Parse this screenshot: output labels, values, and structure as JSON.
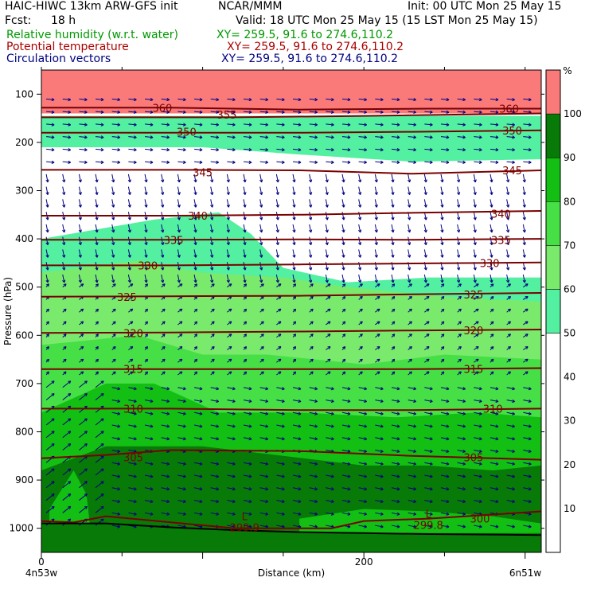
{
  "header": {
    "model": "HAIC-HIWC 13km ARW-GFS init",
    "org": "NCAR/MMM",
    "init": "Init: 00 UTC Mon 25 May 15",
    "fcst_label": "Fcst:",
    "fcst_value": "18 h",
    "valid": "Valid: 18 UTC Mon 25 May 15 (15 LST Mon 25 May 15)",
    "fields": [
      {
        "label": "Relative humidity (w.r.t. water)",
        "xy": "XY= 259.5, 91.6 to 274.6,110.2",
        "color": "#009900"
      },
      {
        "label": "Potential temperature",
        "xy": "XY= 259.5, 91.6 to 274.6,110.2",
        "color": "#aa0000"
      },
      {
        "label": "Circulation vectors",
        "xy": "XY= 259.5, 91.6 to 274.6,110.2",
        "color": "#000080"
      }
    ]
  },
  "chart_data": {
    "type": "cross-section",
    "ylabel": "Pressure (hPa)",
    "xlabel": "Distance (km)",
    "x_ticks": [
      0,
      200
    ],
    "xlim": [
      0,
      310
    ],
    "y_ticks": [
      100,
      200,
      300,
      400,
      500,
      600,
      700,
      800,
      900,
      1000
    ],
    "ylim": [
      1050,
      50
    ],
    "endpoint_left": "4n53w",
    "endpoint_right": "6n51w",
    "colorbar": {
      "unit": "%",
      "levels": [
        10,
        20,
        30,
        40,
        50,
        60,
        70,
        80,
        90,
        100
      ],
      "bins": [
        {
          "from": 0,
          "to": 50,
          "color": "#ffffff"
        },
        {
          "from": 50,
          "to": 60,
          "color": "#52f0a0"
        },
        {
          "from": 60,
          "to": 70,
          "color": "#7aea6c"
        },
        {
          "from": 70,
          "to": 80,
          "color": "#46e046"
        },
        {
          "from": 80,
          "to": 90,
          "color": "#13bf13"
        },
        {
          "from": 90,
          "to": 100,
          "color": "#087a08"
        },
        {
          "from": 100,
          "to": 110,
          "color": "#fa7a7a"
        }
      ]
    },
    "theta_labels": [
      {
        "text": "360",
        "x": 75,
        "p": 128
      },
      {
        "text": "360",
        "x": 290,
        "p": 130
      },
      {
        "text": "355",
        "x": 115,
        "p": 142
      },
      {
        "text": "350",
        "x": 90,
        "p": 178
      },
      {
        "text": "350",
        "x": 292,
        "p": 175
      },
      {
        "text": "345",
        "x": 100,
        "p": 262
      },
      {
        "text": "345",
        "x": 292,
        "p": 258
      },
      {
        "text": "340",
        "x": 97,
        "p": 352
      },
      {
        "text": "340",
        "x": 285,
        "p": 348
      },
      {
        "text": "335",
        "x": 82,
        "p": 402
      },
      {
        "text": "335",
        "x": 285,
        "p": 402
      },
      {
        "text": "330",
        "x": 66,
        "p": 455
      },
      {
        "text": "330",
        "x": 278,
        "p": 450
      },
      {
        "text": "325",
        "x": 53,
        "p": 520
      },
      {
        "text": "325",
        "x": 268,
        "p": 515
      },
      {
        "text": "320",
        "x": 57,
        "p": 595
      },
      {
        "text": "320",
        "x": 268,
        "p": 590
      },
      {
        "text": "315",
        "x": 57,
        "p": 670
      },
      {
        "text": "315",
        "x": 268,
        "p": 670
      },
      {
        "text": "310",
        "x": 57,
        "p": 752
      },
      {
        "text": "310",
        "x": 280,
        "p": 752
      },
      {
        "text": "305",
        "x": 57,
        "p": 853
      },
      {
        "text": "305",
        "x": 268,
        "p": 853
      },
      {
        "text": "300",
        "x": 272,
        "p": 980
      }
    ],
    "lows": [
      {
        "letter": "L",
        "value": "299.9",
        "x": 126,
        "p": 990
      },
      {
        "letter": "L",
        "value": "299.8",
        "x": 240,
        "p": 985
      }
    ],
    "theta_lines": [
      [
        [
          0,
          128
        ],
        [
          80,
          128
        ],
        [
          160,
          132
        ],
        [
          240,
          130
        ],
        [
          310,
          130
        ]
      ],
      [
        [
          0,
          148
        ],
        [
          60,
          148
        ],
        [
          120,
          148
        ],
        [
          200,
          145
        ],
        [
          310,
          140
        ]
      ],
      [
        [
          0,
          180
        ],
        [
          80,
          180
        ],
        [
          160,
          180
        ],
        [
          230,
          178
        ],
        [
          310,
          175
        ]
      ],
      [
        [
          0,
          257
        ],
        [
          80,
          257
        ],
        [
          160,
          258
        ],
        [
          230,
          265
        ],
        [
          310,
          258
        ]
      ],
      [
        [
          0,
          352
        ],
        [
          80,
          352
        ],
        [
          160,
          350
        ],
        [
          230,
          346
        ],
        [
          310,
          342
        ]
      ],
      [
        [
          0,
          402
        ],
        [
          80,
          402
        ],
        [
          160,
          401
        ],
        [
          230,
          402
        ],
        [
          310,
          400
        ]
      ],
      [
        [
          0,
          455
        ],
        [
          80,
          455
        ],
        [
          160,
          453
        ],
        [
          230,
          451
        ],
        [
          310,
          449
        ]
      ],
      [
        [
          0,
          520
        ],
        [
          80,
          519
        ],
        [
          160,
          518
        ],
        [
          230,
          515
        ],
        [
          310,
          512
        ]
      ],
      [
        [
          0,
          595
        ],
        [
          80,
          594
        ],
        [
          160,
          592
        ],
        [
          230,
          590
        ],
        [
          310,
          588
        ]
      ],
      [
        [
          0,
          670
        ],
        [
          80,
          670
        ],
        [
          160,
          670
        ],
        [
          230,
          670
        ],
        [
          310,
          668
        ]
      ],
      [
        [
          0,
          752
        ],
        [
          80,
          752
        ],
        [
          160,
          755
        ],
        [
          230,
          755
        ],
        [
          310,
          752
        ]
      ],
      [
        [
          0,
          855
        ],
        [
          40,
          848
        ],
        [
          80,
          838
        ],
        [
          160,
          840
        ],
        [
          230,
          850
        ],
        [
          310,
          858
        ]
      ],
      [
        [
          0,
          985
        ],
        [
          20,
          988
        ],
        [
          40,
          975
        ],
        [
          120,
          1000
        ],
        [
          180,
          1000
        ],
        [
          200,
          985
        ],
        [
          240,
          980
        ],
        [
          310,
          965
        ]
      ]
    ],
    "terrain": [
      [
        0,
        990
      ],
      [
        40,
        990
      ],
      [
        80,
        998
      ],
      [
        120,
        1004
      ],
      [
        160,
        1008
      ],
      [
        200,
        1010
      ],
      [
        240,
        1012
      ],
      [
        280,
        1013
      ],
      [
        310,
        1014
      ]
    ],
    "rh_regions": [
      {
        "color": "#fa7a7a",
        "pts": [
          [
            0,
            50
          ],
          [
            310,
            50
          ],
          [
            310,
            140
          ],
          [
            0,
            140
          ]
        ]
      },
      {
        "color": "#52f0a0",
        "pts": [
          [
            0,
            145
          ],
          [
            310,
            145
          ],
          [
            310,
            235
          ],
          [
            230,
            240
          ],
          [
            160,
            225
          ],
          [
            100,
            210
          ],
          [
            0,
            210
          ]
        ]
      },
      {
        "color": "#52f0a0",
        "pts": [
          [
            0,
            400
          ],
          [
            70,
            360
          ],
          [
            110,
            345
          ],
          [
            130,
            390
          ],
          [
            150,
            460
          ],
          [
            190,
            490
          ],
          [
            240,
            480
          ],
          [
            310,
            480
          ],
          [
            310,
            1050
          ],
          [
            0,
            1050
          ]
        ]
      },
      {
        "color": "#7aea6c",
        "pts": [
          [
            0,
            470
          ],
          [
            60,
            445
          ],
          [
            100,
            470
          ],
          [
            150,
            480
          ],
          [
            190,
            500
          ],
          [
            250,
            520
          ],
          [
            310,
            530
          ],
          [
            310,
            1050
          ],
          [
            0,
            1050
          ]
        ]
      },
      {
        "color": "#46e046",
        "pts": [
          [
            0,
            620
          ],
          [
            60,
            600
          ],
          [
            100,
            640
          ],
          [
            140,
            640
          ],
          [
            200,
            660
          ],
          [
            250,
            640
          ],
          [
            310,
            650
          ],
          [
            310,
            1050
          ],
          [
            0,
            1050
          ]
        ]
      },
      {
        "color": "#13bf13",
        "pts": [
          [
            0,
            760
          ],
          [
            40,
            700
          ],
          [
            70,
            700
          ],
          [
            110,
            760
          ],
          [
            160,
            760
          ],
          [
            220,
            770
          ],
          [
            270,
            760
          ],
          [
            310,
            770
          ],
          [
            310,
            1050
          ],
          [
            0,
            1050
          ]
        ]
      },
      {
        "color": "#087a08",
        "pts": [
          [
            0,
            880
          ],
          [
            40,
            830
          ],
          [
            100,
            830
          ],
          [
            150,
            850
          ],
          [
            200,
            870
          ],
          [
            240,
            870
          ],
          [
            280,
            880
          ],
          [
            310,
            870
          ],
          [
            310,
            1050
          ],
          [
            0,
            1050
          ]
        ]
      },
      {
        "color": "#13bf13",
        "pts": [
          [
            5,
            960
          ],
          [
            20,
            880
          ],
          [
            28,
            930
          ],
          [
            30,
            990
          ],
          [
            5,
            990
          ]
        ]
      },
      {
        "color": "#13bf13",
        "pts": [
          [
            160,
            980
          ],
          [
            200,
            960
          ],
          [
            240,
            965
          ],
          [
            280,
            975
          ],
          [
            310,
            990
          ],
          [
            310,
            1010
          ],
          [
            160,
            1010
          ]
        ]
      }
    ]
  }
}
